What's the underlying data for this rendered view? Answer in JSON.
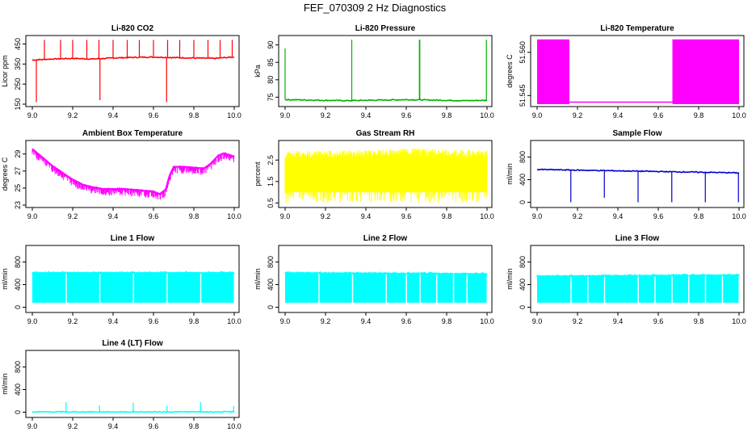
{
  "page": {
    "title": "FEF_070309  2 Hz Diagnostics"
  },
  "chart_data": [
    {
      "type": "line",
      "title": "Li-820 CO2",
      "ylabel": "Licor ppm",
      "color": "#ff0000",
      "x_ticks": [
        "9.0",
        "9.2",
        "9.4",
        "9.6",
        "9.8",
        "10.0"
      ],
      "y_ticks": [
        "150",
        "250",
        "350",
        "450"
      ],
      "xlim": [
        9.0,
        10.0
      ],
      "ylim": [
        150,
        480
      ],
      "series": [
        {
          "baseline": 380,
          "points": [
            [
              9.0,
              370
            ],
            [
              9.1,
              375
            ],
            [
              9.2,
              378
            ],
            [
              9.3,
              375
            ],
            [
              9.4,
              380
            ],
            [
              9.5,
              383
            ],
            [
              9.6,
              385
            ],
            [
              9.7,
              382
            ],
            [
              9.8,
              380
            ],
            [
              9.9,
              378
            ],
            [
              10.0,
              385
            ]
          ],
          "spikes": [
            [
              9.02,
              160
            ],
            [
              9.06,
              470
            ],
            [
              9.14,
              470
            ],
            [
              9.2,
              470
            ],
            [
              9.27,
              470
            ],
            [
              9.33,
              470
            ],
            [
              9.335,
              170
            ],
            [
              9.4,
              470
            ],
            [
              9.47,
              470
            ],
            [
              9.53,
              470
            ],
            [
              9.6,
              470
            ],
            [
              9.665,
              160
            ],
            [
              9.67,
              470
            ],
            [
              9.73,
              470
            ],
            [
              9.8,
              470
            ],
            [
              9.87,
              470
            ],
            [
              9.93,
              470
            ],
            [
              9.99,
              470
            ]
          ]
        }
      ]
    },
    {
      "type": "line",
      "title": "Li-820 Pressure",
      "ylabel": "kPa",
      "color": "#00b000",
      "x_ticks": [
        "9.0",
        "9.2",
        "9.4",
        "9.6",
        "9.8",
        "10.0"
      ],
      "y_ticks": [
        "75",
        "80",
        "85",
        "90"
      ],
      "xlim": [
        9.0,
        10.0
      ],
      "ylim": [
        73,
        92
      ],
      "series": [
        {
          "baseline": 74,
          "points": [
            [
              9.0,
              74.3
            ],
            [
              9.1,
              74.2
            ],
            [
              9.2,
              74.1
            ],
            [
              9.3,
              74.0
            ],
            [
              9.4,
              74.1
            ],
            [
              9.5,
              74.2
            ],
            [
              9.6,
              74.3
            ],
            [
              9.7,
              74.2
            ],
            [
              9.8,
              74.1
            ],
            [
              9.9,
              74.0
            ],
            [
              10.0,
              74.1
            ]
          ],
          "spikes": [
            [
              9.0,
              89
            ],
            [
              9.33,
              91.5
            ],
            [
              9.665,
              91.5
            ],
            [
              9.667,
              91.5
            ],
            [
              9.997,
              91.5
            ]
          ]
        }
      ]
    },
    {
      "type": "area",
      "title": "Li-820 Temperature",
      "ylabel": "degrees C",
      "color": "#ff00ff",
      "x_ticks": [
        "9.0",
        "9.2",
        "9.4",
        "9.6",
        "9.8",
        "10.0"
      ],
      "y_ticks": [
        "51.545",
        "51.560"
      ],
      "xlim": [
        9.0,
        10.0
      ],
      "ylim": [
        51.542,
        51.565
      ],
      "bands": [
        [
          9.0,
          9.16,
          51.542,
          51.5645
        ],
        [
          9.67,
          10.0,
          51.542,
          51.5645
        ]
      ],
      "low_level": 51.5427
    },
    {
      "type": "line",
      "title": "Ambient Box Temperature",
      "ylabel": "degrees C",
      "color": "#ff00ff",
      "x_ticks": [
        "9.0",
        "9.2",
        "9.4",
        "9.6",
        "9.8",
        "10.0"
      ],
      "y_ticks": [
        "23",
        "25",
        "27",
        "29"
      ],
      "xlim": [
        9.0,
        10.0
      ],
      "ylim": [
        23,
        30.3
      ],
      "series": [
        {
          "noise": 0.8,
          "points": [
            [
              9.0,
              29.6
            ],
            [
              9.05,
              28.6
            ],
            [
              9.1,
              27.6
            ],
            [
              9.15,
              26.8
            ],
            [
              9.2,
              26.0
            ],
            [
              9.25,
              25.4
            ],
            [
              9.3,
              25.1
            ],
            [
              9.35,
              24.9
            ],
            [
              9.4,
              24.9
            ],
            [
              9.45,
              24.9
            ],
            [
              9.5,
              24.8
            ],
            [
              9.55,
              24.7
            ],
            [
              9.6,
              24.6
            ],
            [
              9.63,
              24.3
            ],
            [
              9.66,
              24.8
            ],
            [
              9.68,
              26.5
            ],
            [
              9.7,
              27.5
            ],
            [
              9.75,
              27.5
            ],
            [
              9.8,
              27.4
            ],
            [
              9.85,
              27.3
            ],
            [
              9.88,
              27.8
            ],
            [
              9.92,
              28.8
            ],
            [
              9.95,
              29.1
            ],
            [
              10.0,
              28.7
            ]
          ]
        }
      ]
    },
    {
      "type": "area",
      "title": "Gas Stream RH",
      "ylabel": "percent",
      "color": "#ffff00",
      "x_ticks": [
        "9.0",
        "9.2",
        "9.4",
        "9.6",
        "9.8",
        "10.0"
      ],
      "y_ticks": [
        "0.5",
        "1.5",
        "2.5"
      ],
      "xlim": [
        9.0,
        10.0
      ],
      "ylim": [
        0.4,
        3.3
      ],
      "band_top": [
        [
          9.0,
          2.95
        ],
        [
          9.2,
          2.95
        ],
        [
          9.4,
          2.98
        ],
        [
          9.6,
          3.05
        ],
        [
          9.8,
          3.0
        ],
        [
          10.0,
          2.95
        ]
      ],
      "band_bottom": 0.5
    },
    {
      "type": "line",
      "title": "Sample Flow",
      "ylabel": "ml/min",
      "color": "#0000cc",
      "x_ticks": [
        "9.0",
        "9.2",
        "9.4",
        "9.6",
        "9.8",
        "10.0"
      ],
      "y_ticks": [
        "0",
        "400",
        "800"
      ],
      "xlim": [
        9.0,
        10.0
      ],
      "ylim": [
        -50,
        1050
      ],
      "series": [
        {
          "baseline": 540,
          "points": [
            [
              9.0,
              580
            ],
            [
              10.0,
              520
            ]
          ],
          "spikes": [
            [
              9.167,
              0
            ],
            [
              9.333,
              80
            ],
            [
              9.5,
              0
            ],
            [
              9.667,
              0
            ],
            [
              9.833,
              0
            ],
            [
              9.997,
              0
            ]
          ]
        }
      ]
    },
    {
      "type": "area",
      "title": "Line 1 Flow",
      "ylabel": "ml/min",
      "color": "#00ffff",
      "x_ticks": [
        "9.0",
        "9.2",
        "9.4",
        "9.6",
        "9.8",
        "10.0"
      ],
      "y_ticks": [
        "0",
        "400",
        "800"
      ],
      "xlim": [
        9.0,
        10.0
      ],
      "ylim": [
        -50,
        1050
      ],
      "band_top": [
        [
          9.0,
          620
        ],
        [
          10.0,
          620
        ]
      ],
      "band_bottom": 80,
      "gaps": [
        9.167,
        9.333,
        9.5,
        9.667,
        9.833
      ]
    },
    {
      "type": "area",
      "title": "Line 2 Flow",
      "ylabel": "ml/min",
      "color": "#00ffff",
      "x_ticks": [
        "9.0",
        "9.2",
        "9.4",
        "9.6",
        "9.8",
        "10.0"
      ],
      "y_ticks": [
        "0",
        "400",
        "800"
      ],
      "xlim": [
        9.0,
        10.0
      ],
      "ylim": [
        -50,
        1050
      ],
      "band_top": [
        [
          9.0,
          620
        ],
        [
          10.0,
          600
        ]
      ],
      "band_bottom": 80,
      "gaps": [
        9.167,
        9.333,
        9.5,
        9.6,
        9.667,
        9.75,
        9.833,
        9.9
      ]
    },
    {
      "type": "area",
      "title": "Line 3 Flow",
      "ylabel": "ml/min",
      "color": "#00ffff",
      "x_ticks": [
        "9.0",
        "9.2",
        "9.4",
        "9.6",
        "9.8",
        "10.0"
      ],
      "y_ticks": [
        "0",
        "400",
        "800"
      ],
      "xlim": [
        9.0,
        10.0
      ],
      "ylim": [
        -50,
        1050
      ],
      "band_top": [
        [
          9.0,
          560
        ],
        [
          10.0,
          580
        ]
      ],
      "band_bottom": 80,
      "gaps": [
        9.167,
        9.25,
        9.333,
        9.5,
        9.583,
        9.667,
        9.75,
        9.833,
        9.917
      ]
    },
    {
      "type": "line",
      "title": "Line 4 (LT) Flow",
      "ylabel": "ml/min",
      "color": "#00ffff",
      "x_ticks": [
        "9.0",
        "9.2",
        "9.4",
        "9.6",
        "9.8",
        "10.0"
      ],
      "y_ticks": [
        "0",
        "400",
        "800"
      ],
      "xlim": [
        9.0,
        10.0
      ],
      "ylim": [
        -50,
        1050
      ],
      "series": [
        {
          "baseline": 5,
          "points": [
            [
              9.0,
              5
            ],
            [
              10.0,
              5
            ]
          ],
          "spikes": [
            [
              9.167,
              180
            ],
            [
              9.333,
              120
            ],
            [
              9.5,
              170
            ],
            [
              9.667,
              110
            ],
            [
              9.833,
              180
            ],
            [
              9.997,
              110
            ]
          ]
        }
      ]
    }
  ]
}
